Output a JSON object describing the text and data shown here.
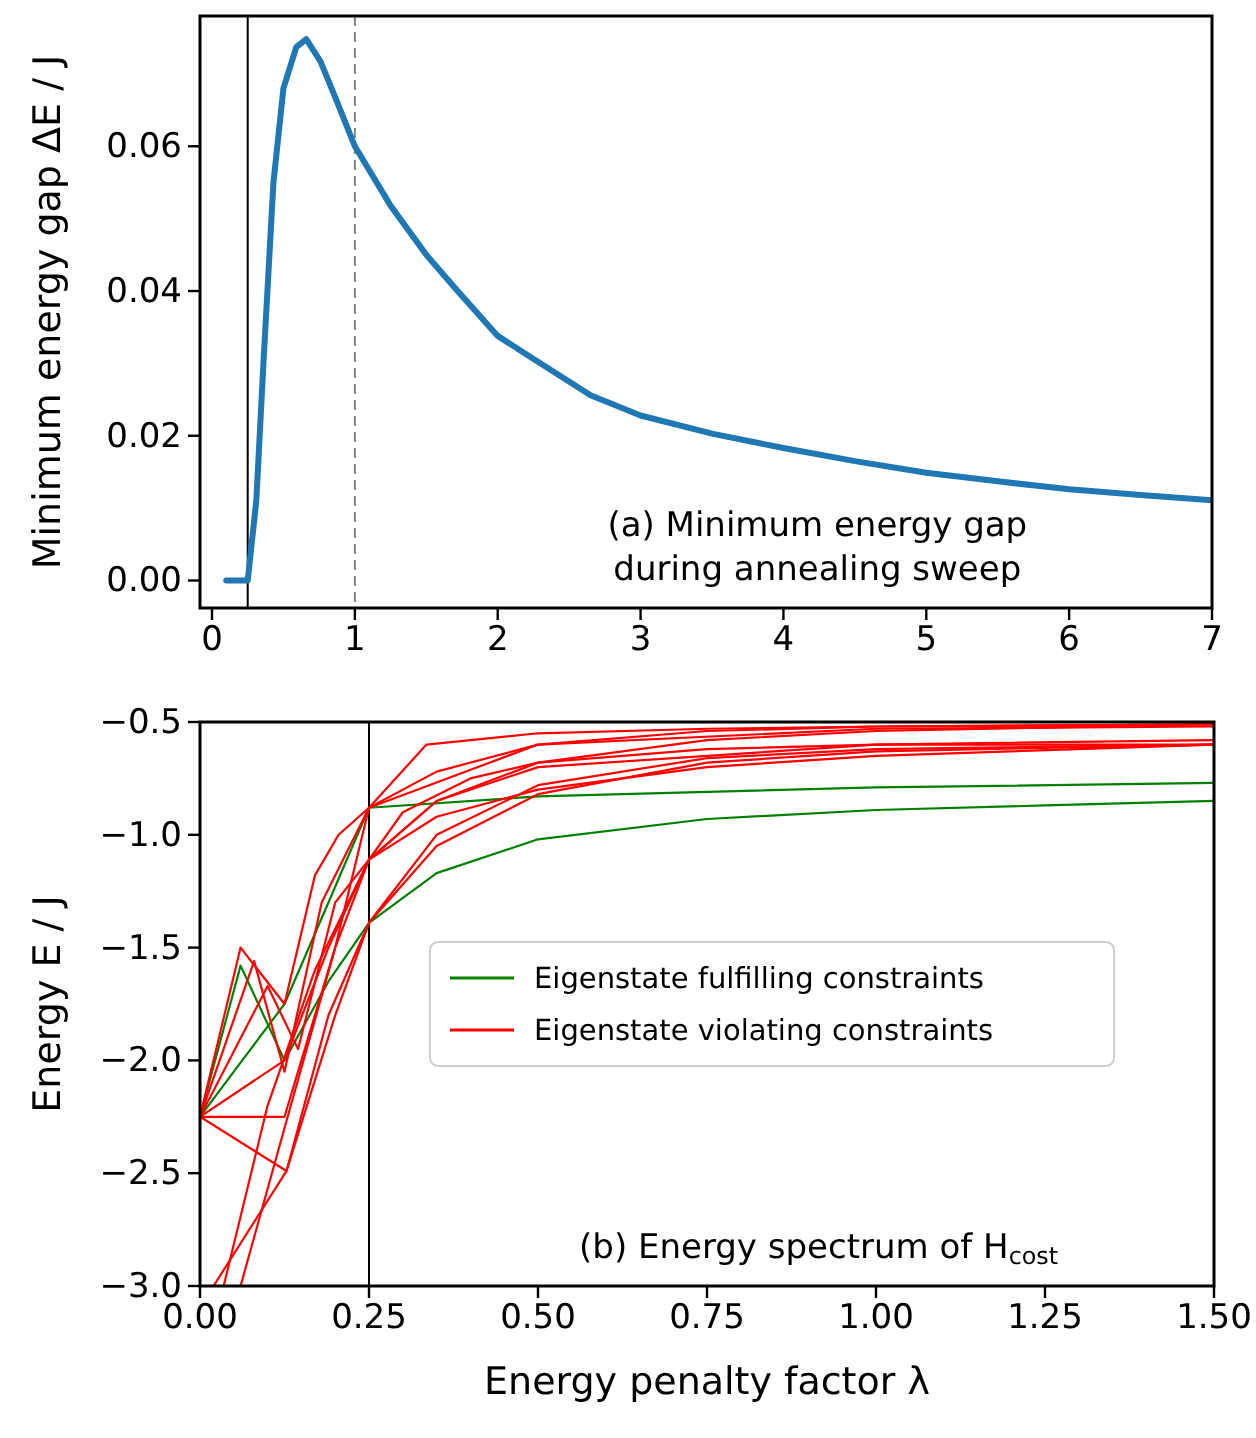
{
  "chart_data": [
    {
      "type": "line",
      "ylabel": "Minimum energy gap ΔE / J",
      "xlim": [
        -0.084,
        7
      ],
      "ylim": [
        -0.0038,
        0.078
      ],
      "xticks": [
        0,
        1,
        2,
        3,
        4,
        5,
        6,
        7
      ],
      "yticks": [
        {
          "value": 0,
          "label": "0.00"
        },
        {
          "value": 0.02,
          "label": "0.02"
        },
        {
          "value": 0.04,
          "label": "0.04"
        },
        {
          "value": 0.06,
          "label": "0.06"
        }
      ],
      "grid": false,
      "legend": false,
      "annotations": [
        "(a) Minimum energy gap\nduring annealing sweep"
      ],
      "ref_lines": [
        {
          "axis": "x",
          "value": 0.25,
          "color": "#000000",
          "line_style": "solid"
        },
        {
          "axis": "x",
          "value": 1,
          "color": "#808080",
          "line_style": "dashed"
        }
      ],
      "series": [
        {
          "color": "#1f77b4",
          "x": [
            0.1,
            0.25,
            0.31,
            0.36,
            0.43,
            0.5,
            0.59,
            0.66,
            0.76,
            0.87,
            1.0,
            1.25,
            1.5,
            1.71,
            2.0,
            2.18,
            2.65,
            3.0,
            3.5,
            4.0,
            4.5,
            5.0,
            5.5,
            6.0,
            6.5,
            7.0
          ],
          "values": [
            0,
            0,
            0.011,
            0.03,
            0.055,
            0.068,
            0.0737,
            0.0748,
            0.0717,
            0.0664,
            0.06,
            0.0518,
            0.045,
            0.0402,
            0.0338,
            0.0315,
            0.0256,
            0.0228,
            0.0203,
            0.0183,
            0.0165,
            0.0149,
            0.0137,
            0.0126,
            0.0118,
            0.0111
          ]
        }
      ]
    },
    {
      "type": "line",
      "xlabel": "Energy penalty factor λ",
      "ylabel": "Energy E / J",
      "xlim": [
        0,
        1.5
      ],
      "ylim": [
        -3.0,
        -0.5
      ],
      "xticks": [
        {
          "value": 0,
          "label": "0.00"
        },
        {
          "value": 0.25,
          "label": "0.25"
        },
        {
          "value": 0.5,
          "label": "0.50"
        },
        {
          "value": 0.75,
          "label": "0.75"
        },
        {
          "value": 1.0,
          "label": "1.00"
        },
        {
          "value": 1.25,
          "label": "1.25"
        },
        {
          "value": 1.5,
          "label": "1.50"
        }
      ],
      "yticks": [
        {
          "value": -3.0,
          "label": "−3.0"
        },
        {
          "value": -2.5,
          "label": "−2.5"
        },
        {
          "value": -2.0,
          "label": "−2.0"
        },
        {
          "value": -1.5,
          "label": "−1.5"
        },
        {
          "value": -1.0,
          "label": "−1.0"
        },
        {
          "value": -0.5,
          "label": "−0.5"
        }
      ],
      "grid": false,
      "legend": "center right",
      "annotations": [
        "(b) Energy spectrum of H$_{cost}$"
      ],
      "ref_lines": [
        {
          "axis": "x",
          "value": 0.25,
          "color": "#000000",
          "line_style": "solid"
        }
      ],
      "series": [
        {
          "name": "Eigenstate fulfilling constraints",
          "color": "#008000",
          "x": [
            0,
            0.06,
            0.125,
            0.19,
            0.25,
            0.35,
            0.5,
            0.75,
            1.0,
            1.25,
            1.5
          ],
          "values": [
            -2.25,
            -1.58,
            -2.0,
            -1.65,
            -1.39,
            -1.17,
            -1.02,
            -0.93,
            -0.89,
            -0.87,
            -0.85
          ]
        },
        {
          "color": "#008000",
          "x": [
            0,
            0.0625,
            0.125,
            0.19,
            0.25,
            0.5,
            1.0,
            1.5
          ],
          "values": [
            -2.25,
            -2.0,
            -1.75,
            -1.3,
            -0.88,
            -0.83,
            -0.79,
            -0.77
          ]
        },
        {
          "name": "Eigenstate violating constraints",
          "color": "#ff0000",
          "x": [
            0,
            0.06,
            0.125,
            0.17,
            0.205,
            0.25,
            0.335,
            0.5,
            0.75,
            1.0,
            1.5
          ],
          "values": [
            -2.25,
            -1.5,
            -1.75,
            -1.18,
            -1.0,
            -0.88,
            -0.6,
            -0.55,
            -0.53,
            -0.52,
            -0.51
          ]
        },
        {
          "color": "#ff0000",
          "x": [
            0,
            0.08,
            0.125,
            0.18,
            0.25,
            0.35,
            0.5,
            0.75,
            1.0,
            1.5
          ],
          "values": [
            -2.25,
            -1.56,
            -2.05,
            -1.3,
            -0.88,
            -0.72,
            -0.6,
            -0.54,
            -0.52,
            -0.51
          ]
        },
        {
          "color": "#ff0000",
          "x": [
            0,
            0.1,
            0.145,
            0.2,
            0.25,
            0.35,
            0.5,
            0.75,
            1.0,
            1.5
          ],
          "values": [
            -2.25,
            -1.67,
            -1.95,
            -1.3,
            -1.11,
            -0.92,
            -0.8,
            -0.7,
            -0.65,
            -0.6
          ]
        },
        {
          "color": "#ff0000",
          "x": [
            0,
            0.125,
            0.2,
            0.25,
            0.35,
            0.5,
            0.75,
            1.0,
            1.5
          ],
          "values": [
            -2.25,
            -2.25,
            -1.5,
            -1.11,
            -0.85,
            -0.68,
            -0.58,
            -0.54,
            -0.51
          ]
        },
        {
          "color": "#ff0000",
          "x": [
            0,
            0.125,
            0.19,
            0.25,
            0.3,
            0.4,
            0.5,
            0.75,
            1.0,
            1.5
          ],
          "values": [
            -2.25,
            -2.0,
            -1.5,
            -1.11,
            -0.9,
            -0.75,
            -0.68,
            -0.62,
            -0.6,
            -0.6
          ]
        },
        {
          "color": "#ff0000",
          "x": [
            0,
            0.128,
            0.2,
            0.25,
            0.35,
            0.5,
            0.75,
            1.0,
            1.5
          ],
          "values": [
            -2.25,
            -2.49,
            -1.8,
            -1.39,
            -1.05,
            -0.82,
            -0.68,
            -0.63,
            -0.6
          ]
        },
        {
          "color": "#ff0000",
          "x": [
            0.02,
            0.128,
            0.19,
            0.25,
            0.35,
            0.5,
            0.75,
            1.0,
            1.5
          ],
          "values": [
            -3.0,
            -2.49,
            -1.8,
            -1.39,
            -1.0,
            -0.78,
            -0.66,
            -0.62,
            -0.6
          ]
        },
        {
          "color": "#ff0000",
          "x": [
            0.035,
            0.1,
            0.17,
            0.25,
            0.35,
            0.5,
            1.0,
            1.5
          ],
          "values": [
            -3.0,
            -2.2,
            -1.6,
            -1.11,
            -0.85,
            -0.7,
            -0.6,
            -0.58
          ]
        },
        {
          "color": "#ff0000",
          "x": [
            0.06,
            0.125,
            0.2,
            0.25,
            0.5,
            1.0,
            1.5
          ],
          "values": [
            -3.0,
            -2.3,
            -1.5,
            -0.88,
            -0.6,
            -0.53,
            -0.52
          ]
        }
      ]
    }
  ]
}
